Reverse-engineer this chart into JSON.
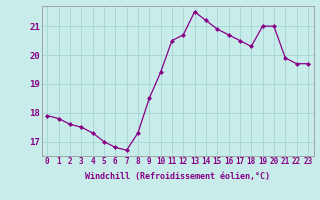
{
  "hours": [
    0,
    1,
    2,
    3,
    4,
    5,
    6,
    7,
    8,
    9,
    10,
    11,
    12,
    13,
    14,
    15,
    16,
    17,
    18,
    19,
    20,
    21,
    22,
    23
  ],
  "values": [
    17.9,
    17.8,
    17.6,
    17.5,
    17.3,
    17.0,
    16.8,
    16.7,
    17.3,
    18.5,
    19.4,
    20.5,
    20.7,
    21.5,
    21.2,
    20.9,
    20.7,
    20.5,
    20.3,
    21.0,
    21.0,
    19.9,
    19.7,
    19.7
  ],
  "ylim": [
    16.5,
    21.7
  ],
  "yticks": [
    17,
    18,
    19,
    20,
    21
  ],
  "xtick_labels": [
    "0",
    "1",
    "2",
    "3",
    "4",
    "5",
    "6",
    "7",
    "8",
    "9",
    "10",
    "11",
    "12",
    "13",
    "14",
    "15",
    "16",
    "17",
    "18",
    "19",
    "20",
    "21",
    "22",
    "23"
  ],
  "line_color": "#880088",
  "marker": "D",
  "marker_size": 2.0,
  "bg_color": "#c8ecea",
  "grid_color": "#aad8d6",
  "xlabel": "Windchill (Refroidissement éolien,°C)",
  "tick_fontsize": 5.5,
  "label_fontsize": 6.0,
  "ytick_fontsize": 6.5
}
